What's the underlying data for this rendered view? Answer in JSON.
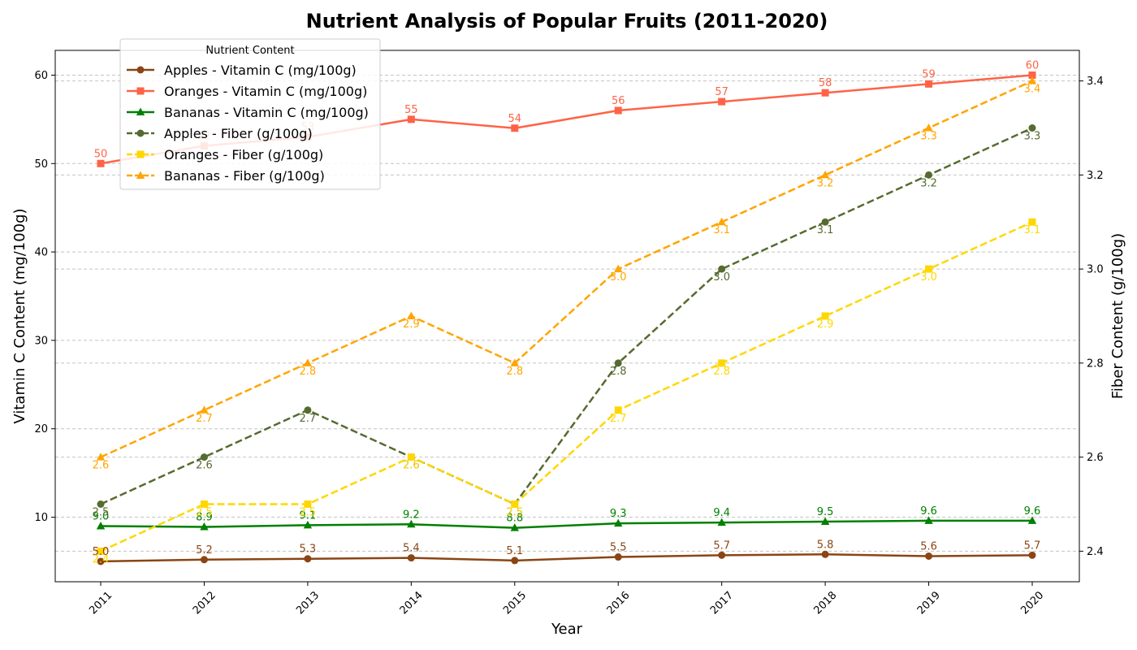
{
  "chart_data": {
    "type": "line",
    "title": "Nutrient Analysis of Popular Fruits (2011-2020)",
    "xlabel": "Year",
    "ylabel_left": "Vitamin C Content (mg/100g)",
    "ylabel_right": "Fiber Content (g/100g)",
    "x": [
      "2011",
      "2012",
      "2013",
      "2014",
      "2015",
      "2016",
      "2017",
      "2018",
      "2019",
      "2020"
    ],
    "ylim_left": [
      2.7,
      62.8
    ],
    "ylim_right": [
      2.335,
      3.465
    ],
    "yticks_left": [
      "10",
      "20",
      "30",
      "40",
      "50",
      "60"
    ],
    "yticks_right": [
      "2.4",
      "2.6",
      "2.8",
      "3.0",
      "3.2",
      "3.4"
    ],
    "grid": true,
    "legend": {
      "title": "Nutrient Content",
      "placement": "top-left"
    },
    "series": [
      {
        "name": "Apples - Vitamin C (mg/100g)",
        "axis": "left",
        "color": "#8B4513",
        "style": "solid",
        "marker": "circle",
        "label_position": "above",
        "values": [
          5.0,
          5.2,
          5.3,
          5.4,
          5.1,
          5.5,
          5.7,
          5.8,
          5.6,
          5.7
        ],
        "labels": [
          "5.0",
          "5.2",
          "5.3",
          "5.4",
          "5.1",
          "5.5",
          "5.7",
          "5.8",
          "5.6",
          "5.7"
        ]
      },
      {
        "name": "Oranges - Vitamin C (mg/100g)",
        "axis": "left",
        "color": "#FF6347",
        "style": "solid",
        "marker": "square",
        "label_position": "above",
        "values": [
          50,
          52,
          53,
          55,
          54,
          56,
          57,
          58,
          59,
          60
        ],
        "labels": [
          "50",
          "52",
          "53",
          "55",
          "54",
          "56",
          "57",
          "58",
          "59",
          "60"
        ]
      },
      {
        "name": "Bananas - Vitamin C (mg/100g)",
        "axis": "left",
        "color": "#008000",
        "style": "solid",
        "marker": "triangle",
        "label_position": "above",
        "values": [
          9.0,
          8.9,
          9.1,
          9.2,
          8.8,
          9.3,
          9.4,
          9.5,
          9.6,
          9.6
        ],
        "labels": [
          "9.0",
          "8.9",
          "9.1",
          "9.2",
          "8.8",
          "9.3",
          "9.4",
          "9.5",
          "9.6",
          "9.6"
        ]
      },
      {
        "name": "Apples - Fiber (g/100g)",
        "axis": "right",
        "color": "#556B2F",
        "style": "dashed",
        "marker": "circle",
        "label_position": "below",
        "values": [
          2.5,
          2.6,
          2.7,
          2.6,
          2.5,
          2.8,
          3.0,
          3.1,
          3.2,
          3.3
        ],
        "labels": [
          "2.5",
          "2.6",
          "2.7",
          "2.6",
          "2.5",
          "2.8",
          "3.0",
          "3.1",
          "3.2",
          "3.3"
        ]
      },
      {
        "name": "Oranges - Fiber (g/100g)",
        "axis": "right",
        "color": "#FFD700",
        "style": "dashed",
        "marker": "square",
        "label_position": "below",
        "values": [
          2.4,
          2.5,
          2.5,
          2.6,
          2.5,
          2.7,
          2.8,
          2.9,
          3.0,
          3.1
        ],
        "labels": [
          "2.4",
          "2.5",
          "2.5",
          "2.6",
          "2.5",
          "2.7",
          "2.8",
          "2.9",
          "3.0",
          "3.1"
        ]
      },
      {
        "name": "Bananas - Fiber (g/100g)",
        "axis": "right",
        "color": "#FFA500",
        "style": "dashed",
        "marker": "triangle",
        "label_position": "below",
        "values": [
          2.6,
          2.7,
          2.8,
          2.9,
          2.8,
          3.0,
          3.1,
          3.2,
          3.3,
          3.4
        ],
        "labels": [
          "2.6",
          "2.7",
          "2.8",
          "2.9",
          "2.8",
          "3.0",
          "3.1",
          "3.2",
          "3.3",
          "3.4"
        ]
      }
    ]
  }
}
